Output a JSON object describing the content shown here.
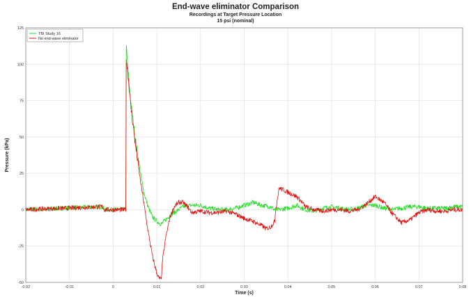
{
  "chart_data": {
    "type": "line",
    "title": "End-wave eliminator Comparison",
    "subtitle": "Recordings at Target Pressure Location",
    "subtitle2": "15 psi (nominal)",
    "xlabel": "Time (s)",
    "ylabel": "Pressure (kPa)",
    "xlim": [
      -0.02,
      0.08
    ],
    "ylim": [
      -50,
      125
    ],
    "xticks": [
      "-0.02",
      "-0.01",
      "0",
      "0.01",
      "0.02",
      "0.03",
      "0.04",
      "0.05",
      "0.06",
      "0.07",
      "0.08"
    ],
    "yticks": [
      "-50",
      "-25",
      "0",
      "25",
      "50",
      "75",
      "100",
      "125"
    ],
    "grid": true,
    "legend": "top-left",
    "series": [
      {
        "name": "TBI Study 16",
        "color": "#22dd22",
        "x": [
          -0.02,
          -0.003,
          -0.0025,
          -0.002,
          0.0029,
          0.003,
          0.0035,
          0.004,
          0.005,
          0.006,
          0.007,
          0.008,
          0.009,
          0.01,
          0.011,
          0.012,
          0.013,
          0.014,
          0.016,
          0.018,
          0.02,
          0.022,
          0.024,
          0.026,
          0.028,
          0.03,
          0.032,
          0.034,
          0.036,
          0.037,
          0.038,
          0.04,
          0.042,
          0.044,
          0.046,
          0.048,
          0.05,
          0.052,
          0.054,
          0.056,
          0.058,
          0.06,
          0.062,
          0.064,
          0.066,
          0.068,
          0.07,
          0.072,
          0.074,
          0.076,
          0.078,
          0.08
        ],
        "y": [
          0,
          2,
          2,
          0,
          0,
          112,
          92,
          75,
          50,
          30,
          12,
          2,
          -5,
          -8,
          -10,
          -7,
          -4,
          -2,
          2,
          3,
          3,
          1,
          0,
          0,
          1,
          3,
          5,
          3,
          2,
          0,
          0,
          1,
          3,
          0,
          -1,
          1,
          2,
          1,
          0,
          1,
          3,
          3,
          1,
          0,
          1,
          2,
          2,
          1,
          1,
          1,
          2,
          2
        ]
      },
      {
        "name": "No end-wave eliminator",
        "color": "#dd1111",
        "x": [
          -0.02,
          -0.003,
          -0.0025,
          -0.002,
          0.0029,
          0.003,
          0.0035,
          0.004,
          0.005,
          0.006,
          0.007,
          0.008,
          0.009,
          0.01,
          0.0105,
          0.011,
          0.0113,
          0.012,
          0.013,
          0.014,
          0.015,
          0.016,
          0.017,
          0.018,
          0.02,
          0.022,
          0.024,
          0.026,
          0.028,
          0.03,
          0.032,
          0.034,
          0.035,
          0.036,
          0.037,
          0.0372,
          0.038,
          0.04,
          0.042,
          0.043,
          0.044,
          0.046,
          0.048,
          0.05,
          0.052,
          0.054,
          0.056,
          0.058,
          0.06,
          0.062,
          0.064,
          0.066,
          0.068,
          0.07,
          0.072,
          0.074,
          0.076,
          0.078,
          0.08
        ],
        "y": [
          0,
          2,
          2,
          0,
          0,
          104,
          90,
          72,
          47,
          25,
          5,
          -15,
          -32,
          -44,
          -47,
          -48,
          -35,
          -20,
          -5,
          2,
          5,
          5,
          2,
          -2,
          -1,
          -2,
          -2,
          -1,
          -3,
          -6,
          -8,
          -11,
          -13,
          -12,
          -8,
          0,
          15,
          12,
          9,
          6,
          2,
          0,
          -1,
          0,
          0,
          -1,
          0,
          4,
          9,
          5,
          -3,
          -9,
          -7,
          -2,
          0,
          -1,
          -1,
          0,
          0
        ]
      }
    ]
  }
}
